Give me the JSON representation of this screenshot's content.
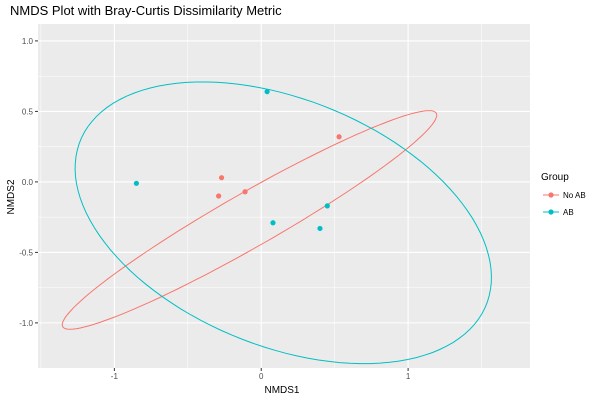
{
  "chart_data": {
    "type": "scatter",
    "title": "NMDS Plot with Bray-Curtis Dissimilarity Metric",
    "xlabel": "NMDS1",
    "ylabel": "NMDS2",
    "xlim": [
      -1.52,
      1.83
    ],
    "ylim": [
      -1.32,
      1.12
    ],
    "x_ticks": [
      -1,
      0,
      1
    ],
    "x_tick_labels": [
      "-1",
      "0",
      "1"
    ],
    "y_ticks": [
      -1.0,
      -0.5,
      0.0,
      0.5,
      1.0
    ],
    "y_tick_labels": [
      "-1.0",
      "-0.5",
      "0.0",
      "0.5",
      "1.0"
    ],
    "grid": true,
    "legend": {
      "title": "Group",
      "position": "right"
    },
    "series": [
      {
        "name": "No AB",
        "color": "#F8766D",
        "points": [
          {
            "x": -0.27,
            "y": 0.03
          },
          {
            "x": -0.29,
            "y": -0.1
          },
          {
            "x": -0.11,
            "y": -0.07
          },
          {
            "x": 0.53,
            "y": 0.32
          }
        ],
        "ellipse": {
          "center": [
            -0.08,
            -0.27
          ],
          "semi_axes": [
            1.48,
            0.19
          ],
          "angle_deg": 30.8
        }
      },
      {
        "name": "AB",
        "color": "#00BFC4",
        "points": [
          {
            "x": 0.04,
            "y": 0.64
          },
          {
            "x": -0.85,
            "y": -0.01
          },
          {
            "x": 0.45,
            "y": -0.17
          },
          {
            "x": 0.08,
            "y": -0.29
          },
          {
            "x": 0.4,
            "y": -0.33
          }
        ],
        "ellipse": {
          "center": [
            0.15,
            -0.29
          ],
          "semi_axes": [
            1.5,
            0.87
          ],
          "angle_deg": -23.7
        }
      }
    ]
  }
}
